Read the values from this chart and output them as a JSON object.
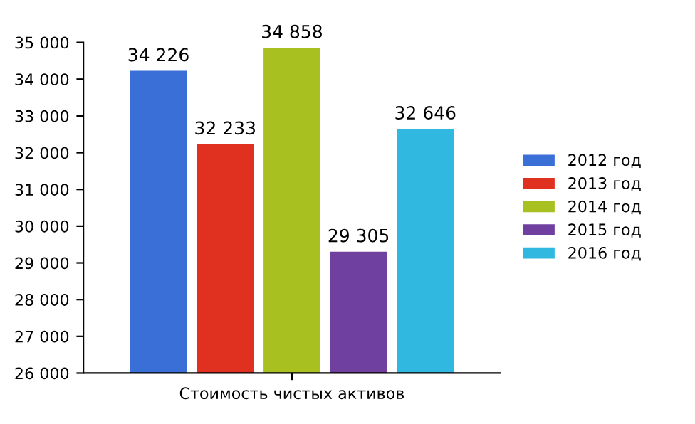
{
  "chart_data": {
    "type": "bar",
    "categories": [
      "Стоимость чистых активов"
    ],
    "series": [
      {
        "name": "2012 год",
        "color": "#3a6fd8",
        "values": [
          34226
        ],
        "value_labels": [
          "34 226"
        ]
      },
      {
        "name": "2013 год",
        "color": "#e03020",
        "values": [
          32233
        ],
        "value_labels": [
          "32 233"
        ]
      },
      {
        "name": "2014 год",
        "color": "#a8c020",
        "values": [
          34858
        ],
        "value_labels": [
          "34 858"
        ]
      },
      {
        "name": "2015 год",
        "color": "#7040a0",
        "values": [
          29305
        ],
        "value_labels": [
          "29 305"
        ]
      },
      {
        "name": "2016 год",
        "color": "#30b8e0",
        "values": [
          32646
        ],
        "value_labels": [
          "32 646"
        ]
      }
    ],
    "ylim": [
      26000,
      35000
    ],
    "yticks": [
      {
        "value": 26000,
        "label": "26 000"
      },
      {
        "value": 27000,
        "label": "27 000"
      },
      {
        "value": 28000,
        "label": "28 000"
      },
      {
        "value": 29000,
        "label": "29 000"
      },
      {
        "value": 30000,
        "label": "30 000"
      },
      {
        "value": 31000,
        "label": "31 000"
      },
      {
        "value": 32000,
        "label": "32 000"
      },
      {
        "value": 33000,
        "label": "33 000"
      },
      {
        "value": 34000,
        "label": "34 000"
      },
      {
        "value": 35000,
        "label": "35 000"
      }
    ],
    "grid": false,
    "legend": "right"
  }
}
